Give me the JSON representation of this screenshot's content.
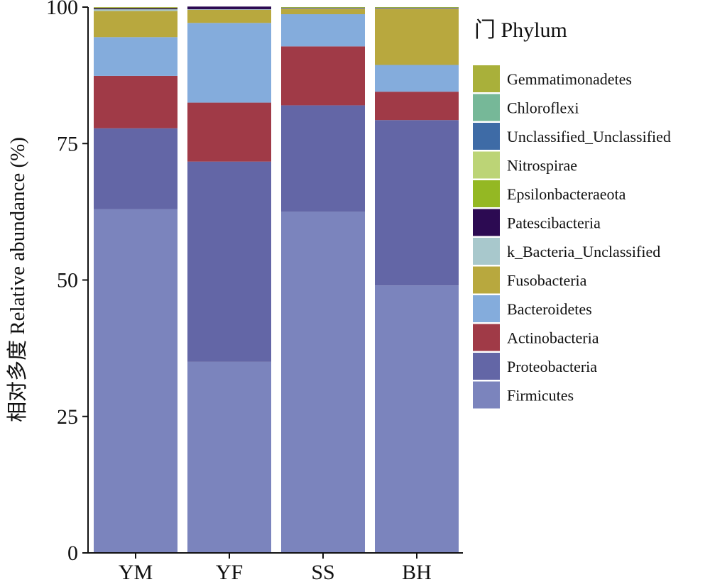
{
  "chart_data": {
    "type": "bar",
    "stacked": true,
    "ylabel": "相对多度 Relative abundance (%)",
    "xlabel": "",
    "ylim": [
      0,
      100
    ],
    "yticks": [
      0,
      25,
      50,
      75,
      100
    ],
    "categories": [
      "YM",
      "YF",
      "SS",
      "BH"
    ],
    "legend": {
      "title": "门 Phylum",
      "placement": "right"
    },
    "series": [
      {
        "name": "Firmicutes",
        "color": "#7b84bd",
        "values": [
          63.0,
          35.0,
          62.5,
          49.0
        ]
      },
      {
        "name": "Proteobacteria",
        "color": "#6366a6",
        "values": [
          14.8,
          36.7,
          19.5,
          30.3
        ]
      },
      {
        "name": "Actinobacteria",
        "color": "#a03a47",
        "values": [
          9.6,
          10.8,
          10.8,
          5.2
        ]
      },
      {
        "name": "Bacteroidetes",
        "color": "#84acdc",
        "values": [
          7.1,
          14.6,
          5.9,
          4.9
        ]
      },
      {
        "name": "Fusobacteria",
        "color": "#b8a83e",
        "values": [
          4.8,
          2.4,
          1.0,
          10.3
        ]
      },
      {
        "name": "k_Bacteria_Unclassified",
        "color": "#a8c8cc",
        "values": [
          0.3,
          0.1,
          0.1,
          0.1
        ]
      },
      {
        "name": "Patescibacteria",
        "color": "#2c0a52",
        "values": [
          0.2,
          0.5,
          0.1,
          0.1
        ]
      },
      {
        "name": "Epsilonbacteraeota",
        "color": "#94b823",
        "values": [
          0.1,
          0.0,
          0.1,
          0.1
        ]
      },
      {
        "name": "Nitrospirae",
        "color": "#bcd476",
        "values": [
          0.0,
          0.0,
          0.0,
          0.0
        ]
      },
      {
        "name": "Unclassified_Unclassified",
        "color": "#3e6ba6",
        "values": [
          0.0,
          0.0,
          0.0,
          0.0
        ]
      },
      {
        "name": "Chloroflexi",
        "color": "#76b898",
        "values": [
          0.0,
          0.0,
          0.0,
          0.0
        ]
      },
      {
        "name": "Gemmatimonadetes",
        "color": "#a9b03a",
        "values": [
          0.1,
          0.0,
          0.0,
          0.0
        ]
      }
    ]
  }
}
